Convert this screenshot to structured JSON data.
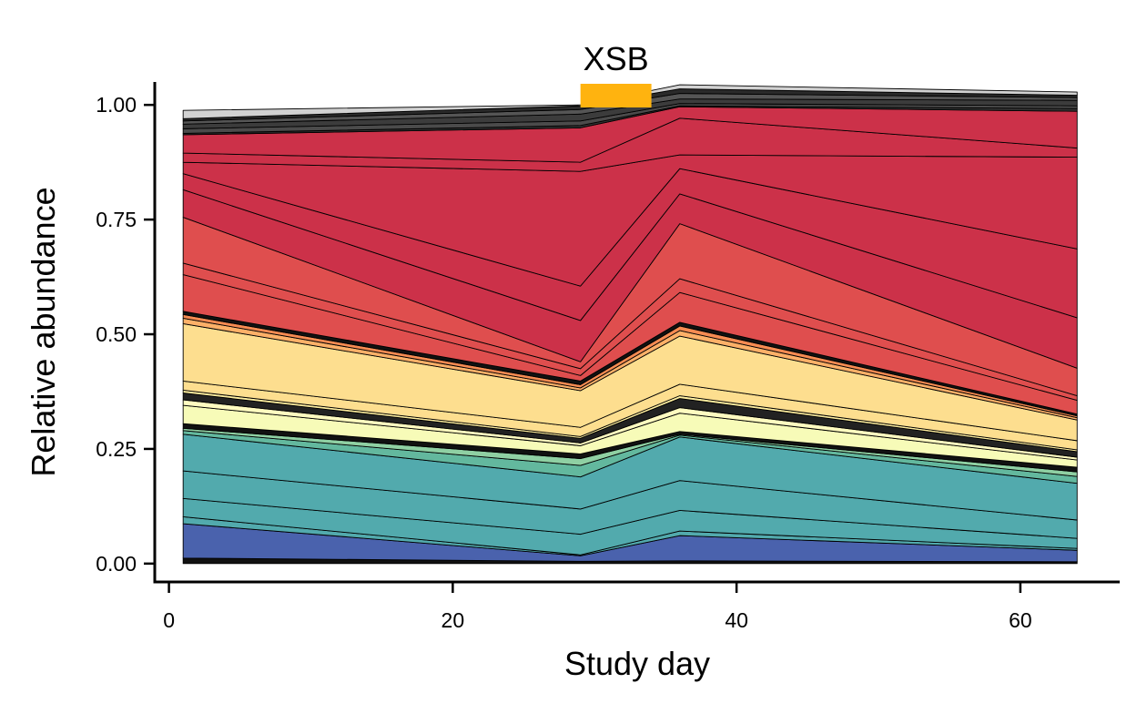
{
  "chart_data": {
    "type": "area",
    "stacked": true,
    "xlabel": "Study day",
    "ylabel": "Relative abundance",
    "xlim": [
      -1,
      67
    ],
    "ylim": [
      -0.04,
      1.05
    ],
    "x_ticks": [
      0,
      20,
      40,
      60
    ],
    "x_tick_labels": [
      "0",
      "20",
      "40",
      "60"
    ],
    "y_ticks": [
      0,
      0.25,
      0.5,
      0.75,
      1
    ],
    "y_tick_labels": [
      "0.00",
      "0.25",
      "0.50",
      "0.75",
      "1.00"
    ],
    "x": [
      1,
      29,
      36,
      64
    ],
    "annotation": {
      "label": "XSB",
      "start": 29,
      "end": 34,
      "color": "#FFB30F"
    },
    "grid": false,
    "legend": "none",
    "series": [
      {
        "color": "#111111",
        "values": [
          0.012,
          0.005,
          0.006,
          0.004
        ]
      },
      {
        "color": "#4A62AD",
        "values": [
          0.075,
          0.012,
          0.055,
          0.025
        ]
      },
      {
        "color": "#52AAAD",
        "values": [
          0.015,
          0.002,
          0.01,
          0.004
        ]
      },
      {
        "color": "#52AAAD",
        "values": [
          0.04,
          0.045,
          0.045,
          0.022
        ]
      },
      {
        "color": "#52AAAD",
        "values": [
          0.06,
          0.055,
          0.065,
          0.04
        ]
      },
      {
        "color": "#52AAAD",
        "values": [
          0.08,
          0.07,
          0.095,
          0.08
        ]
      },
      {
        "color": "#63B89E",
        "values": [
          0.008,
          0.025,
          0.004,
          0.015
        ]
      },
      {
        "color": "#8FD0A3",
        "values": [
          0.005,
          0.015,
          0.002,
          0.01
        ]
      },
      {
        "color": "#111111",
        "values": [
          0.01,
          0.01,
          0.006,
          0.01
        ]
      },
      {
        "color": "#F7FBB8",
        "values": [
          0.04,
          0.018,
          0.04,
          0.016
        ]
      },
      {
        "color": "#FFFBC0",
        "values": [
          0.012,
          0.006,
          0.012,
          0.006
        ]
      },
      {
        "color": "#222222",
        "values": [
          0.015,
          0.01,
          0.02,
          0.012
        ]
      },
      {
        "color": "#FFEFA0",
        "values": [
          0.006,
          0.004,
          0.006,
          0.004
        ]
      },
      {
        "color": "#FDDE8F",
        "values": [
          0.02,
          0.02,
          0.025,
          0.02
        ]
      },
      {
        "color": "#FDDE8F",
        "values": [
          0.125,
          0.08,
          0.105,
          0.045
        ]
      },
      {
        "color": "#FDB068",
        "values": [
          0.012,
          0.006,
          0.012,
          0.005
        ]
      },
      {
        "color": "#F68B52",
        "values": [
          0.008,
          0.007,
          0.01,
          0.004
        ]
      },
      {
        "color": "#111111",
        "values": [
          0.007,
          0.008,
          0.008,
          0.004
        ]
      },
      {
        "color": "#DF4E4E",
        "values": [
          0.08,
          0.012,
          0.065,
          0.03
        ]
      },
      {
        "color": "#DF4E4E",
        "values": [
          0.025,
          0.015,
          0.03,
          0.01
        ]
      },
      {
        "color": "#DF4E4E",
        "values": [
          0.1,
          0.015,
          0.12,
          0.06
        ]
      },
      {
        "color": "#CC3149",
        "values": [
          0.06,
          0.09,
          0.065,
          0.11
        ]
      },
      {
        "color": "#CC3149",
        "values": [
          0.035,
          0.075,
          0.055,
          0.15
        ]
      },
      {
        "color": "#CC3149",
        "values": [
          0.025,
          0.25,
          0.03,
          0.2
        ]
      },
      {
        "color": "#CC3149",
        "values": [
          0.02,
          0.02,
          0.08,
          0.02
        ]
      },
      {
        "color": "#CC3149",
        "values": [
          0.04,
          0.075,
          0.025,
          0.08
        ]
      },
      {
        "color": "#333333",
        "values": [
          0.003,
          0.005,
          0.002,
          0.006
        ]
      },
      {
        "color": "#4B4B4B",
        "values": [
          0.01,
          0.01,
          0.005,
          0.006
        ]
      },
      {
        "color": "#3C3C3C",
        "values": [
          0.01,
          0.015,
          0.01,
          0.012
        ]
      },
      {
        "color": "#555555",
        "values": [
          0.007,
          0.01,
          0.012,
          0.006
        ]
      },
      {
        "color": "#2A2A2A",
        "values": [
          0.005,
          0.008,
          0.01,
          0.005
        ]
      },
      {
        "color": "#D2D2D2",
        "values": [
          0.018,
          0.002,
          0.009,
          0.007
        ]
      }
    ]
  }
}
